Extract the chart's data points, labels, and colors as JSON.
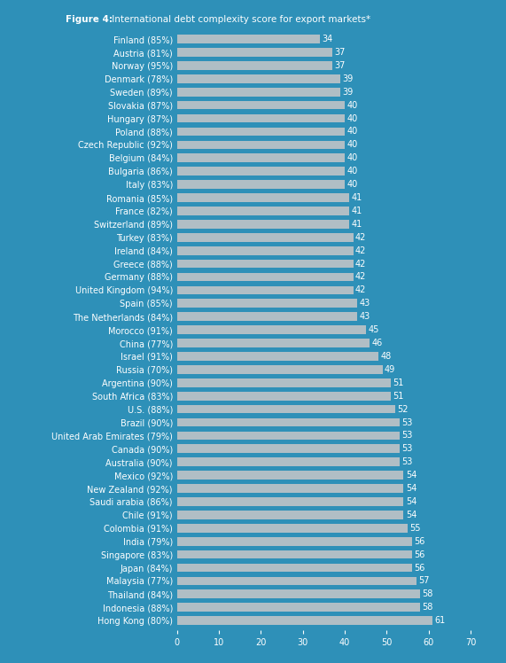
{
  "title_bold": "Figure 4:",
  "title_normal": " International debt complexity score for export markets*",
  "background_color": "#2e90b8",
  "bar_color": "#b0bec5",
  "text_color": "#ffffff",
  "categories": [
    "Finland (85%)",
    "Austria (81%)",
    "Norway (95%)",
    "Denmark (78%)",
    "Sweden (89%)",
    "Slovakia (87%)",
    "Hungary (87%)",
    "Poland (88%)",
    "Czech Republic (92%)",
    "Belgium (84%)",
    "Bulgaria (86%)",
    "Italy (83%)",
    "Romania (85%)",
    "France (82%)",
    "Switzerland (89%)",
    "Turkey (83%)",
    "Ireland (84%)",
    "Greece (88%)",
    "Germany (88%)",
    "United Kingdom (94%)",
    "Spain (85%)",
    "The Netherlands (84%)",
    "Morocco (91%)",
    "China (77%)",
    "Israel (91%)",
    "Russia (70%)",
    "Argentina (90%)",
    "South Africa (83%)",
    "U.S. (88%)",
    "Brazil (90%)",
    "United Arab Emirates (79%)",
    "Canada (90%)",
    "Australia (90%)",
    "Mexico (92%)",
    "New Zealand (92%)",
    "Saudi arabia (86%)",
    "Chile (91%)",
    "Colombia (91%)",
    "India (79%)",
    "Singapore (83%)",
    "Japan (84%)",
    "Malaysia (77%)",
    "Thailand (84%)",
    "Indonesia (88%)",
    "Hong Kong (80%)"
  ],
  "values": [
    34,
    37,
    37,
    39,
    39,
    40,
    40,
    40,
    40,
    40,
    40,
    40,
    41,
    41,
    41,
    42,
    42,
    42,
    42,
    42,
    43,
    43,
    45,
    46,
    48,
    49,
    51,
    51,
    52,
    53,
    53,
    53,
    53,
    54,
    54,
    54,
    54,
    55,
    56,
    56,
    56,
    57,
    58,
    58,
    61
  ],
  "xlim": [
    0,
    70
  ],
  "xticks": [
    0,
    10,
    20,
    30,
    40,
    50,
    60,
    70
  ],
  "title_fontsize": 7.5,
  "label_fontsize": 7.0,
  "value_fontsize": 7.0,
  "tick_fontsize": 7.0
}
